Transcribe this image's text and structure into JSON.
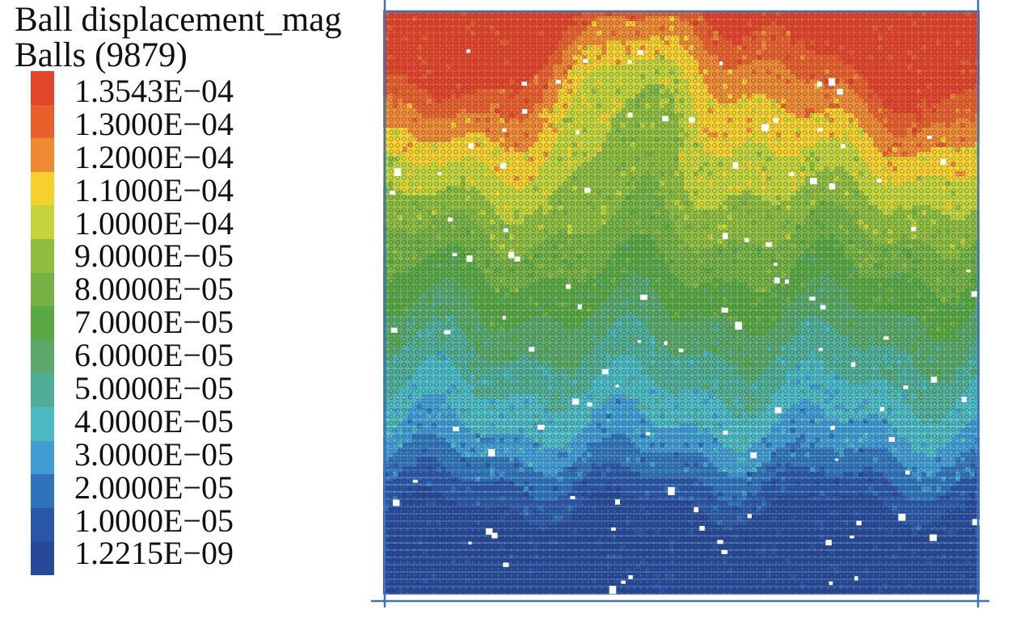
{
  "legend": {
    "title_line1": "Ball displacement_mag",
    "title_line2": "Balls (9879)",
    "labels": [
      "1.3543E−04",
      "1.3000E−04",
      "1.2000E−04",
      "1.1000E−04",
      "1.0000E−04",
      "9.0000E−05",
      "8.0000E−05",
      "7.0000E−05",
      "6.0000E−05",
      "5.0000E−05",
      "4.0000E−05",
      "3.0000E−05",
      "2.0000E−05",
      "1.0000E−05",
      "1.2215E−09"
    ],
    "colors": [
      "#e2452a",
      "#e8612c",
      "#ef8a33",
      "#f6d12e",
      "#c3d53a",
      "#8fbd3f",
      "#75b144",
      "#5aa843",
      "#5aa86a",
      "#4fae95",
      "#4bb9c2",
      "#3f9bd0",
      "#2f73b8",
      "#2a58a6",
      "#274a98"
    ]
  },
  "colors": {
    "frame": "#3e73b5",
    "particle_outline": "#1a2a3a",
    "pore": "#ffffff"
  }
}
